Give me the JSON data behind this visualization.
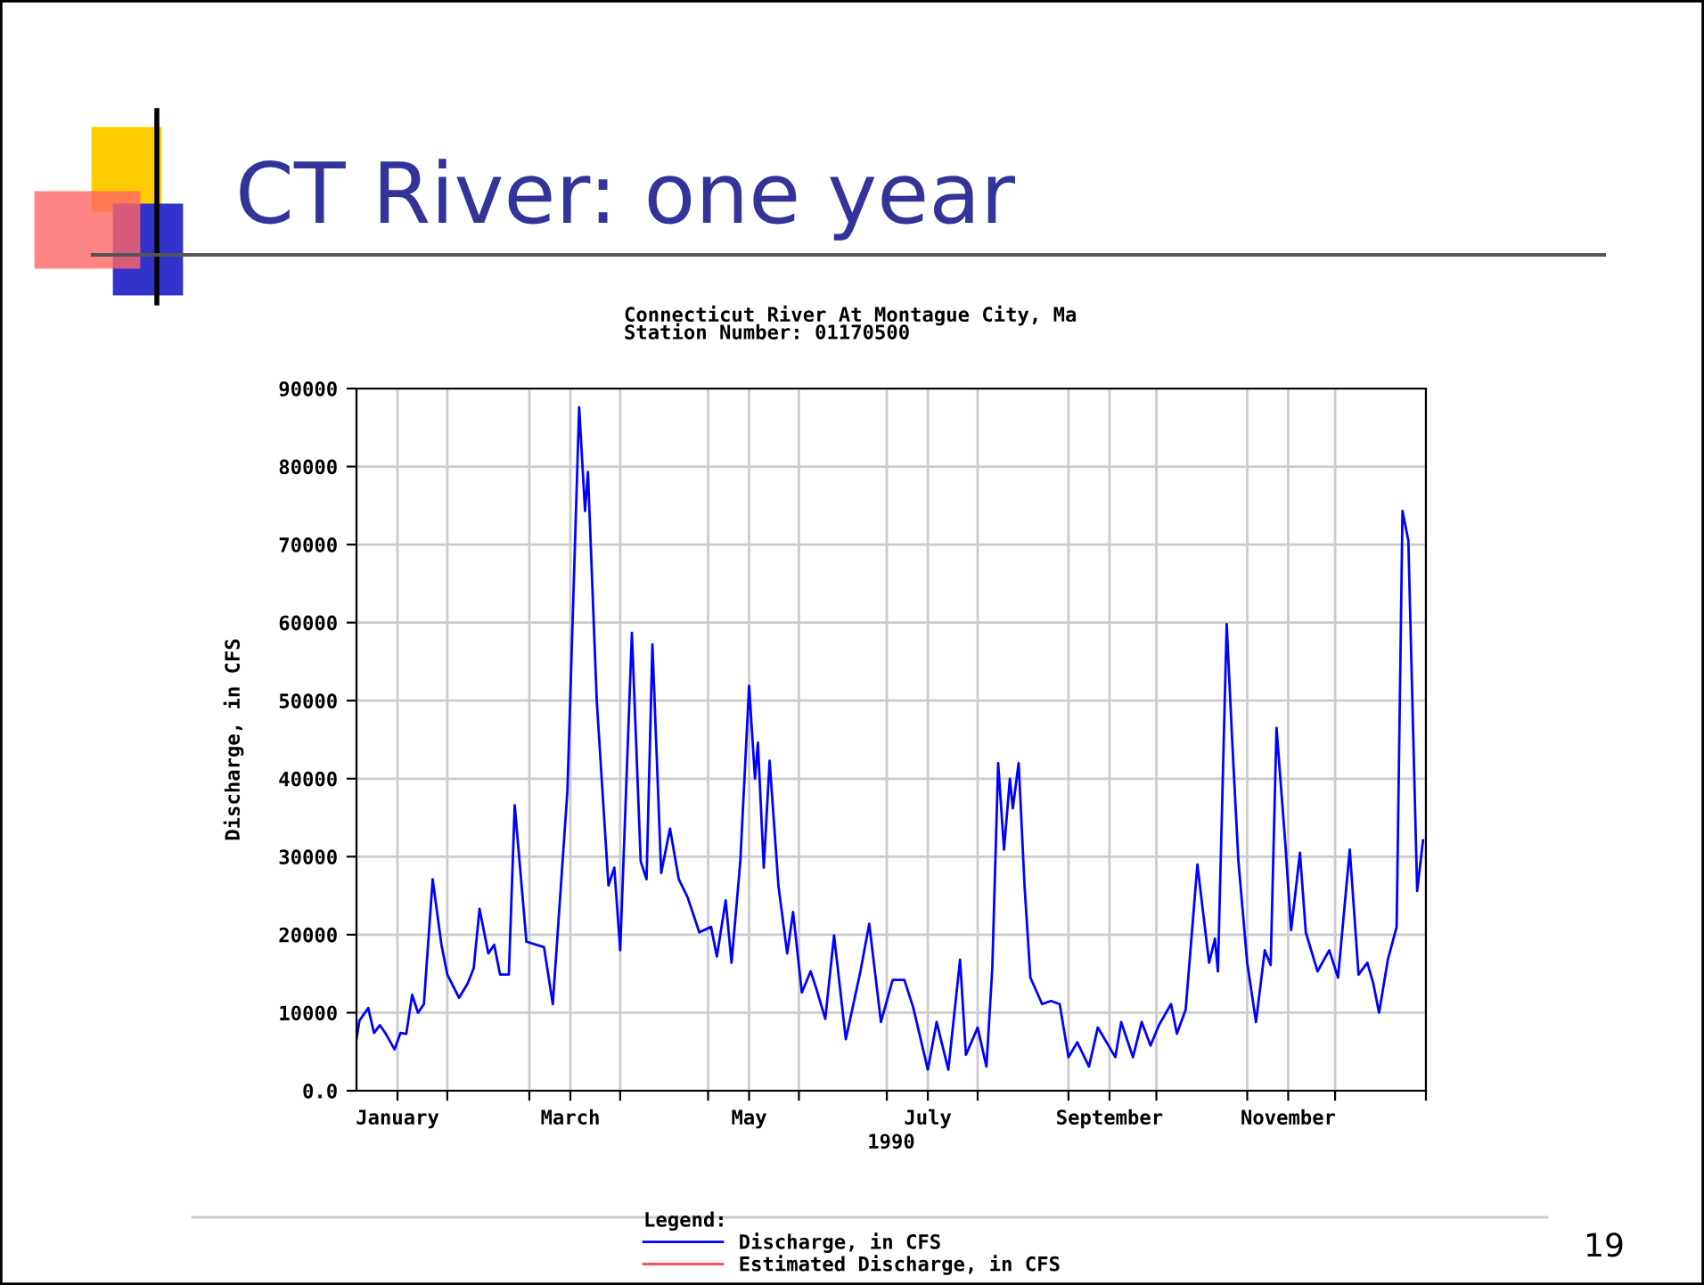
{
  "chart_data": {
    "type": "line",
    "title": "CT River: one year",
    "subtitle": "Connecticut River At Montague City, Ma\nStation Number: 01170500",
    "xlabel": "1990",
    "ylabel": "Discharge, in CFS",
    "legend_title": "Legend:",
    "annotations": [
      "19"
    ],
    "xlim": [
      "1990-01-01",
      "1991-01-01"
    ],
    "xticks": [
      {
        "value": "1990-01-15",
        "label": "January"
      },
      {
        "value": "1990-03-15",
        "label": "March"
      },
      {
        "value": "1990-05-15",
        "label": "May"
      },
      {
        "value": "1990-07-15",
        "label": "July"
      },
      {
        "value": "1990-09-15",
        "label": "September"
      },
      {
        "value": "1990-11-15",
        "label": "November"
      },
      {
        "value": "1990-02-01",
        "label": null
      },
      {
        "value": "1990-03-01",
        "label": null
      },
      {
        "value": "1990-04-01",
        "label": null
      },
      {
        "value": "1990-05-01",
        "label": null
      },
      {
        "value": "1990-06-01",
        "label": null
      },
      {
        "value": "1990-07-01",
        "label": null
      },
      {
        "value": "1990-08-01",
        "label": null
      },
      {
        "value": "1990-09-01",
        "label": null
      },
      {
        "value": "1990-10-01",
        "label": null
      },
      {
        "value": "1990-11-01",
        "label": null
      },
      {
        "value": "1990-12-01",
        "label": null
      },
      {
        "value": "1991-01-01",
        "label": null
      }
    ],
    "ylim": [
      0,
      90000
    ],
    "yticks": [
      {
        "value": 0,
        "label": "0.0"
      },
      10000,
      20000,
      30000,
      40000,
      50000,
      60000,
      70000,
      80000,
      90000
    ],
    "grid": true,
    "legend": "bottom",
    "marker": "none",
    "line_style": "solid",
    "series": [
      {
        "name": "Discharge, in CFS",
        "color": "#0000ff",
        "x": [
          "1990-01-01",
          "1990-01-02",
          "1990-01-05",
          "1990-01-07",
          "1990-01-09",
          "1990-01-11",
          "1990-01-14",
          "1990-01-16",
          "1990-01-18",
          "1990-01-20",
          "1990-01-22",
          "1990-01-24",
          "1990-01-27",
          "1990-01-30",
          "1990-02-01",
          "1990-02-05",
          "1990-02-08",
          "1990-02-10",
          "1990-02-12",
          "1990-02-15",
          "1990-02-17",
          "1990-02-19",
          "1990-02-22",
          "1990-02-24",
          "1990-02-28",
          "1990-03-06",
          "1990-03-09",
          "1990-03-14",
          "1990-03-18",
          "1990-03-20",
          "1990-03-21",
          "1990-03-24",
          "1990-03-28",
          "1990-03-30",
          "1990-04-01",
          "1990-04-05",
          "1990-04-08",
          "1990-04-10",
          "1990-04-12",
          "1990-04-15",
          "1990-04-18",
          "1990-04-21",
          "1990-04-24",
          "1990-04-28",
          "1990-05-02",
          "1990-05-04",
          "1990-05-07",
          "1990-05-09",
          "1990-05-12",
          "1990-05-15",
          "1990-05-17",
          "1990-05-18",
          "1990-05-20",
          "1990-05-22",
          "1990-05-25",
          "1990-05-28",
          "1990-05-30",
          "1990-06-02",
          "1990-06-05",
          "1990-06-07",
          "1990-06-10",
          "1990-06-13",
          "1990-06-17",
          "1990-06-22",
          "1990-06-25",
          "1990-06-29",
          "1990-07-03",
          "1990-07-07",
          "1990-07-10",
          "1990-07-15",
          "1990-07-18",
          "1990-07-22",
          "1990-07-26",
          "1990-07-28",
          "1990-08-01",
          "1990-08-04",
          "1990-08-06",
          "1990-08-08",
          "1990-08-10",
          "1990-08-12",
          "1990-08-13",
          "1990-08-15",
          "1990-08-17",
          "1990-08-19",
          "1990-08-23",
          "1990-08-26",
          "1990-08-29",
          "1990-09-01",
          "1990-09-04",
          "1990-09-08",
          "1990-09-11",
          "1990-09-17",
          "1990-09-19",
          "1990-09-23",
          "1990-09-26",
          "1990-09-29",
          "1990-10-02",
          "1990-10-06",
          "1990-10-08",
          "1990-10-11",
          "1990-10-15",
          "1990-10-19",
          "1990-10-21",
          "1990-10-22",
          "1990-10-25",
          "1990-10-27",
          "1990-10-29",
          "1990-11-01",
          "1990-11-04",
          "1990-11-07",
          "1990-11-09",
          "1990-11-11",
          "1990-11-14",
          "1990-11-16",
          "1990-11-19",
          "1990-11-21",
          "1990-11-25",
          "1990-11-29",
          "1990-12-02",
          "1990-12-06",
          "1990-12-09",
          "1990-12-12",
          "1990-12-14",
          "1990-12-16",
          "1990-12-19",
          "1990-12-22",
          "1990-12-24",
          "1990-12-26",
          "1990-12-29",
          "1990-12-31"
        ],
        "values": [
          6600,
          9000,
          10600,
          7400,
          8400,
          7300,
          5300,
          7400,
          7300,
          12300,
          10000,
          11100,
          27100,
          18700,
          14900,
          11900,
          13800,
          15700,
          23300,
          17600,
          18700,
          14900,
          14900,
          36600,
          19100,
          18400,
          11100,
          38500,
          87600,
          74300,
          79300,
          50000,
          26300,
          28600,
          18000,
          58700,
          29400,
          27100,
          57200,
          27900,
          33600,
          27100,
          24800,
          20300,
          21000,
          17200,
          24400,
          16400,
          29400,
          51900,
          40000,
          44600,
          28600,
          42300,
          26300,
          17600,
          22900,
          12600,
          15300,
          13000,
          9200,
          19900,
          6600,
          15300,
          21400,
          8800,
          14200,
          14200,
          10700,
          2700,
          8800,
          2700,
          16800,
          4600,
          8100,
          3100,
          15700,
          42000,
          30900,
          40000,
          36200,
          42000,
          26300,
          14500,
          11100,
          11500,
          11100,
          4300,
          6200,
          3100,
          8100,
          4300,
          8800,
          4300,
          8800,
          5800,
          8500,
          11100,
          7300,
          10400,
          29000,
          16400,
          19500,
          15300,
          59800,
          43900,
          29400,
          16400,
          8800,
          18000,
          16100,
          46500,
          31700,
          20600,
          30500,
          20300,
          15300,
          18000,
          14500,
          30900,
          14900,
          16400,
          13800,
          10000,
          16800,
          21000,
          74300,
          70500,
          25600,
          32100
        ]
      },
      {
        "name": "Estimated Discharge, in CFS",
        "color": "#ff5050"
      }
    ]
  }
}
